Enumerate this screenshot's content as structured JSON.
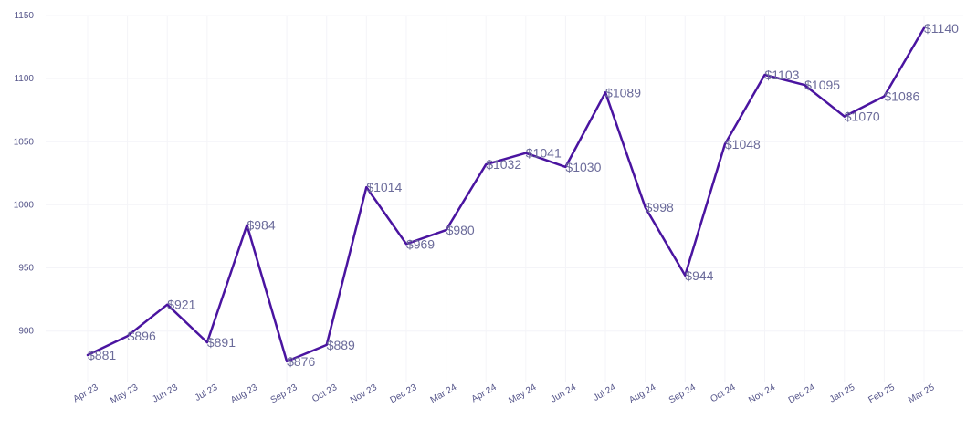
{
  "chart_data": {
    "type": "line",
    "title": "",
    "xlabel": "",
    "ylabel": "",
    "ylim": [
      860,
      1150
    ],
    "yticks": [
      900,
      950,
      1000,
      1050,
      1100,
      1150
    ],
    "grid": true,
    "legend": "none",
    "value_prefix": "$",
    "line_color": "#4a14a0",
    "label_color": "#6b6b9a",
    "categories": [
      "Apr 23",
      "May 23",
      "Jun 23",
      "Jul 23",
      "Aug 23",
      "Sep 23",
      "Oct 23",
      "Nov 23",
      "Dec 23",
      "Mar 24",
      "Apr 24",
      "May 24",
      "Jun 24",
      "Jul 24",
      "Aug 24",
      "Sep 24",
      "Oct 24",
      "Nov 24",
      "Dec 24",
      "Jan 25",
      "Feb 25",
      "Mar 25"
    ],
    "series": [
      {
        "values": [
          881,
          896,
          921,
          891,
          984,
          876,
          889,
          1014,
          969,
          980,
          1032,
          1041,
          1030,
          1089,
          998,
          944,
          1048,
          1103,
          1095,
          1070,
          1086,
          1140
        ]
      }
    ]
  }
}
